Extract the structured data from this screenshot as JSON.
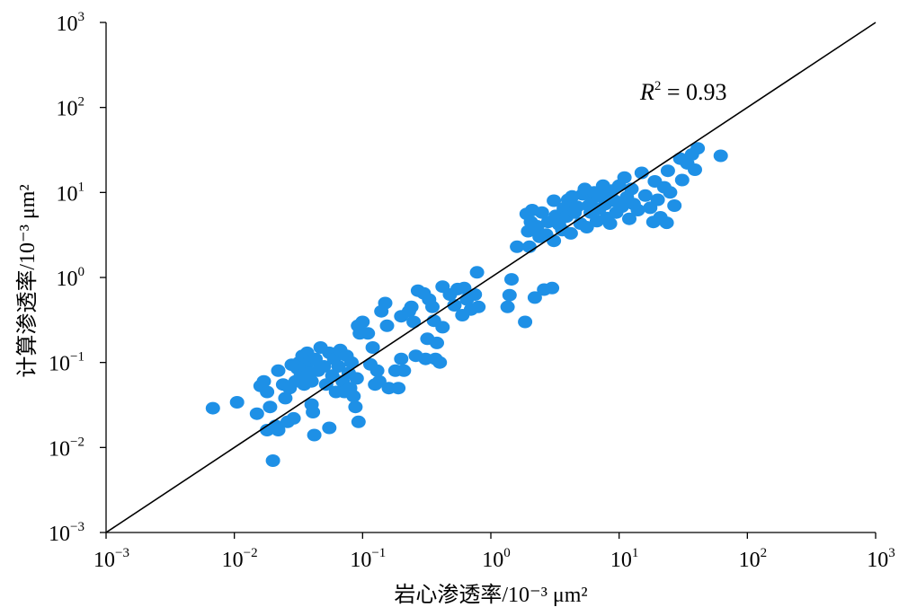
{
  "chart_data": {
    "type": "scatter",
    "title": "",
    "xlabel": "岩心渗透率/10⁻³ μm²",
    "ylabel": "计算渗透率/10⁻³ μm²",
    "xscale": "log",
    "yscale": "log",
    "xlim": [
      0.001,
      1000
    ],
    "ylim": [
      0.001,
      1000
    ],
    "x_ticks": [
      {
        "base": "10",
        "exp": "−3",
        "value": 0.001
      },
      {
        "base": "10",
        "exp": "−2",
        "value": 0.01
      },
      {
        "base": "10",
        "exp": "−1",
        "value": 0.1
      },
      {
        "base": "10",
        "exp": "0",
        "value": 1
      },
      {
        "base": "10",
        "exp": "1",
        "value": 10
      },
      {
        "base": "10",
        "exp": "2",
        "value": 100
      },
      {
        "base": "10",
        "exp": "3",
        "value": 1000
      }
    ],
    "y_ticks": [
      {
        "base": "10",
        "exp": "−3",
        "value": 0.001
      },
      {
        "base": "10",
        "exp": "−2",
        "value": 0.01
      },
      {
        "base": "10",
        "exp": "−1",
        "value": 0.1
      },
      {
        "base": "10",
        "exp": "0",
        "value": 1
      },
      {
        "base": "10",
        "exp": "1",
        "value": 10
      },
      {
        "base": "10",
        "exp": "2",
        "value": 100
      },
      {
        "base": "10",
        "exp": "3",
        "value": 1000
      }
    ],
    "grid": false,
    "legend": "none",
    "annotation": {
      "var": "R",
      "exp": "2",
      "text": " = 0.93"
    },
    "reference_line": {
      "x": [
        0.001,
        1000
      ],
      "y": [
        0.001,
        1000
      ],
      "color": "#000000"
    },
    "marker_color": "#1E90E6",
    "points": [
      [
        0.0068,
        0.029
      ],
      [
        0.0105,
        0.034
      ],
      [
        0.015,
        0.025
      ],
      [
        0.016,
        0.053
      ],
      [
        0.017,
        0.06
      ],
      [
        0.018,
        0.045
      ],
      [
        0.018,
        0.016
      ],
      [
        0.019,
        0.03
      ],
      [
        0.02,
        0.007
      ],
      [
        0.021,
        0.018
      ],
      [
        0.022,
        0.08
      ],
      [
        0.022,
        0.016
      ],
      [
        0.024,
        0.055
      ],
      [
        0.025,
        0.038
      ],
      [
        0.026,
        0.02
      ],
      [
        0.027,
        0.05
      ],
      [
        0.028,
        0.094
      ],
      [
        0.029,
        0.022
      ],
      [
        0.03,
        0.06
      ],
      [
        0.031,
        0.085
      ],
      [
        0.032,
        0.1
      ],
      [
        0.033,
        0.07
      ],
      [
        0.034,
        0.12
      ],
      [
        0.035,
        0.055
      ],
      [
        0.036,
        0.09
      ],
      [
        0.037,
        0.13
      ],
      [
        0.038,
        0.075
      ],
      [
        0.039,
        0.105
      ],
      [
        0.04,
        0.06
      ],
      [
        0.04,
        0.032
      ],
      [
        0.041,
        0.026
      ],
      [
        0.042,
        0.014
      ],
      [
        0.043,
        0.11
      ],
      [
        0.045,
        0.08
      ],
      [
        0.047,
        0.15
      ],
      [
        0.05,
        0.09
      ],
      [
        0.052,
        0.055
      ],
      [
        0.055,
        0.13
      ],
      [
        0.055,
        0.017
      ],
      [
        0.058,
        0.07
      ],
      [
        0.06,
        0.11
      ],
      [
        0.062,
        0.045
      ],
      [
        0.065,
        0.09
      ],
      [
        0.067,
        0.14
      ],
      [
        0.07,
        0.06
      ],
      [
        0.072,
        0.045
      ],
      [
        0.075,
        0.12
      ],
      [
        0.078,
        0.075
      ],
      [
        0.08,
        0.05
      ],
      [
        0.082,
        0.1
      ],
      [
        0.085,
        0.04
      ],
      [
        0.088,
        0.03
      ],
      [
        0.09,
        0.065
      ],
      [
        0.092,
        0.27
      ],
      [
        0.093,
        0.02
      ],
      [
        0.095,
        0.22
      ],
      [
        0.1,
        0.3
      ],
      [
        0.11,
        0.22
      ],
      [
        0.115,
        0.095
      ],
      [
        0.12,
        0.15
      ],
      [
        0.125,
        0.055
      ],
      [
        0.13,
        0.08
      ],
      [
        0.135,
        0.06
      ],
      [
        0.14,
        0.4
      ],
      [
        0.15,
        0.5
      ],
      [
        0.155,
        0.27
      ],
      [
        0.16,
        0.05
      ],
      [
        0.18,
        0.08
      ],
      [
        0.19,
        0.05
      ],
      [
        0.2,
        0.11
      ],
      [
        0.2,
        0.35
      ],
      [
        0.21,
        0.08
      ],
      [
        0.23,
        0.4
      ],
      [
        0.24,
        0.45
      ],
      [
        0.25,
        0.3
      ],
      [
        0.26,
        0.12
      ],
      [
        0.27,
        0.7
      ],
      [
        0.3,
        0.65
      ],
      [
        0.31,
        0.11
      ],
      [
        0.32,
        0.19
      ],
      [
        0.33,
        0.55
      ],
      [
        0.35,
        0.45
      ],
      [
        0.36,
        0.31
      ],
      [
        0.37,
        0.11
      ],
      [
        0.38,
        0.17
      ],
      [
        0.4,
        0.1
      ],
      [
        0.42,
        0.26
      ],
      [
        0.42,
        0.78
      ],
      [
        0.48,
        0.63
      ],
      [
        0.52,
        0.47
      ],
      [
        0.55,
        0.73
      ],
      [
        0.6,
        0.36
      ],
      [
        0.62,
        0.75
      ],
      [
        0.65,
        0.55
      ],
      [
        0.7,
        0.42
      ],
      [
        0.75,
        0.63
      ],
      [
        0.78,
        1.15
      ],
      [
        0.8,
        0.45
      ],
      [
        1.35,
        0.45
      ],
      [
        1.4,
        0.62
      ],
      [
        1.45,
        0.95
      ],
      [
        1.6,
        2.3
      ],
      [
        1.85,
        0.3
      ],
      [
        1.9,
        5.6
      ],
      [
        1.95,
        3.5
      ],
      [
        2.0,
        2.3
      ],
      [
        2.05,
        4.5
      ],
      [
        2.1,
        6.2
      ],
      [
        2.2,
        0.58
      ],
      [
        2.3,
        4.0
      ],
      [
        2.4,
        3.0
      ],
      [
        2.5,
        5.8
      ],
      [
        2.6,
        0.72
      ],
      [
        2.7,
        3.2
      ],
      [
        2.8,
        4.5
      ],
      [
        3.0,
        0.75
      ],
      [
        3.1,
        2.7
      ],
      [
        3.1,
        8.0
      ],
      [
        3.2,
        5.3
      ],
      [
        3.4,
        4.2
      ],
      [
        3.6,
        3.6
      ],
      [
        3.7,
        6.5
      ],
      [
        3.9,
        5.2
      ],
      [
        4.0,
        8.2
      ],
      [
        4.2,
        3.3
      ],
      [
        4.3,
        9.0
      ],
      [
        4.5,
        5.8
      ],
      [
        4.7,
        6.8
      ],
      [
        5.0,
        4.3
      ],
      [
        5.2,
        9.5
      ],
      [
        5.4,
        11.0
      ],
      [
        5.6,
        3.9
      ],
      [
        5.8,
        7.0
      ],
      [
        6.0,
        5.8
      ],
      [
        6.2,
        8.5
      ],
      [
        6.4,
        10.0
      ],
      [
        6.7,
        4.6
      ],
      [
        7.0,
        6.4
      ],
      [
        7.2,
        9.0
      ],
      [
        7.5,
        12.0
      ],
      [
        7.8,
        7.3
      ],
      [
        8.0,
        5.0
      ],
      [
        8.2,
        9.8
      ],
      [
        8.5,
        4.3
      ],
      [
        8.8,
        10.5
      ],
      [
        9.2,
        8.0
      ],
      [
        9.5,
        5.8
      ],
      [
        10.0,
        12.0
      ],
      [
        10.5,
        6.8
      ],
      [
        11.0,
        15.0
      ],
      [
        11.5,
        8.8
      ],
      [
        12.0,
        4.9
      ],
      [
        12.5,
        11.0
      ],
      [
        13.0,
        7.3
      ],
      [
        14.0,
        6.2
      ],
      [
        15.0,
        17.0
      ],
      [
        16.0,
        9.2
      ],
      [
        17.5,
        6.6
      ],
      [
        18.5,
        4.5
      ],
      [
        19.0,
        13.5
      ],
      [
        20.0,
        8.2
      ],
      [
        21.0,
        5.1
      ],
      [
        22.5,
        11.5
      ],
      [
        23.5,
        4.4
      ],
      [
        25.0,
        10.0
      ],
      [
        24.0,
        18.0
      ],
      [
        27.0,
        7.0
      ],
      [
        30.0,
        25.0
      ],
      [
        31.0,
        14.0
      ],
      [
        34.0,
        22.0
      ],
      [
        37.0,
        28.0
      ],
      [
        39.0,
        18.5
      ],
      [
        41.0,
        33.0
      ],
      [
        62.0,
        27.0
      ]
    ]
  }
}
